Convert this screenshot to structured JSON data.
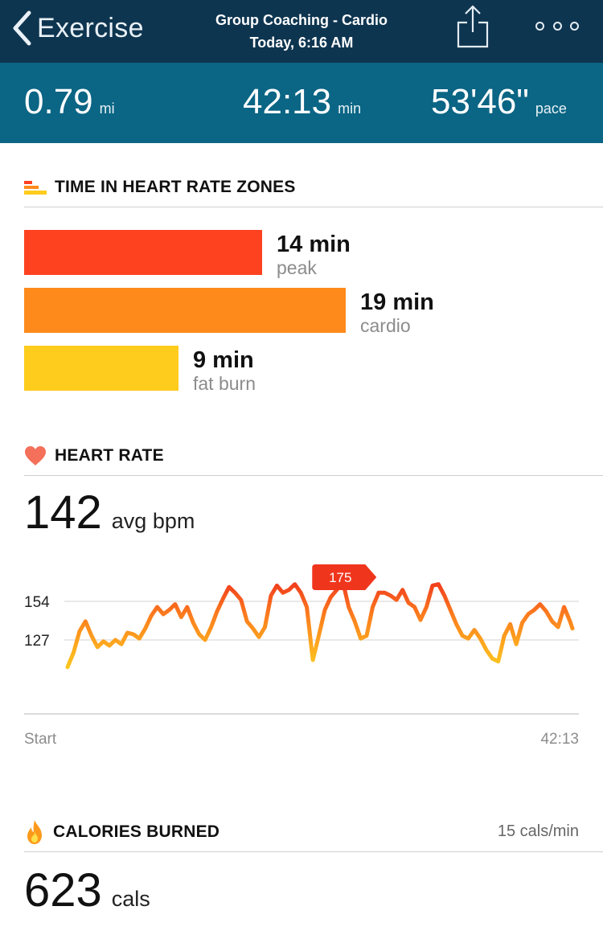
{
  "header": {
    "back_label": "Exercise",
    "title": "Group Coaching - Cardio",
    "subtitle": "Today, 6:16 AM"
  },
  "stats": {
    "distance": {
      "value": "0.79",
      "unit": "mi"
    },
    "duration": {
      "value": "42:13",
      "unit": "min"
    },
    "pace": {
      "value": "53'46\"",
      "unit": "pace"
    }
  },
  "zones": {
    "title": "TIME IN HEART RATE ZONES",
    "items": [
      {
        "value": "14 min",
        "name": "peak",
        "minutes": 14,
        "color": "#fe4220"
      },
      {
        "value": "19 min",
        "name": "cardio",
        "minutes": 19,
        "color": "#fe8a1b"
      },
      {
        "value": "9 min",
        "name": "fat burn",
        "minutes": 9,
        "color": "#fecc1c"
      }
    ]
  },
  "heart_rate": {
    "title": "HEART RATE",
    "avg_value": "142",
    "avg_unit": "avg bpm"
  },
  "chart_data": {
    "type": "line",
    "y_ticks": [
      127,
      154
    ],
    "peak_label": "175",
    "x_start_label": "Start",
    "x_end_label": "42:13",
    "x": [
      0,
      0.5,
      1,
      1.5,
      2,
      2.5,
      3,
      3.5,
      4,
      4.5,
      5,
      5.5,
      6,
      6.5,
      7,
      7.5,
      8,
      8.5,
      9,
      9.5,
      10,
      10.5,
      11,
      11.5,
      12,
      12.5,
      13,
      13.5,
      14,
      14.5,
      15,
      15.5,
      16,
      16.5,
      17,
      17.5,
      18,
      18.5,
      19,
      19.5,
      20,
      20.5,
      21,
      21.5,
      22,
      22.5,
      23,
      23.5,
      24,
      24.5,
      25,
      25.5,
      26,
      26.5,
      27,
      27.5,
      28,
      28.5,
      29,
      29.5,
      30,
      30.5,
      31,
      31.5,
      32,
      32.5,
      33,
      33.5,
      34,
      34.5,
      35,
      35.5,
      36,
      36.5,
      37,
      37.5,
      38,
      38.5,
      39,
      39.5,
      40,
      40.5,
      41,
      41.5,
      42,
      42.2
    ],
    "values": [
      108,
      118,
      133,
      140,
      130,
      122,
      126,
      123,
      127,
      124,
      132,
      131,
      128,
      135,
      144,
      150,
      145,
      148,
      152,
      143,
      150,
      139,
      131,
      127,
      136,
      147,
      156,
      164,
      160,
      155,
      140,
      135,
      129,
      136,
      158,
      165,
      160,
      162,
      166,
      160,
      150,
      113,
      130,
      148,
      157,
      162,
      168,
      150,
      140,
      128,
      130,
      150,
      160,
      160,
      158,
      155,
      162,
      153,
      150,
      141,
      150,
      165,
      166,
      158,
      148,
      138,
      130,
      128,
      134,
      128,
      120,
      114,
      112,
      130,
      138,
      124,
      139,
      145,
      148,
      152,
      147,
      140,
      136,
      150,
      140,
      135
    ]
  },
  "calories": {
    "title": "CALORIES BURNED",
    "rate": "15 cals/min",
    "value": "623",
    "unit": "cals"
  },
  "colors": {
    "header_bg": "#0e3550",
    "stats_bg": "#0b6584",
    "peak": "#fe4220",
    "cardio": "#fe8a1b",
    "fat_burn": "#fecc1c"
  }
}
